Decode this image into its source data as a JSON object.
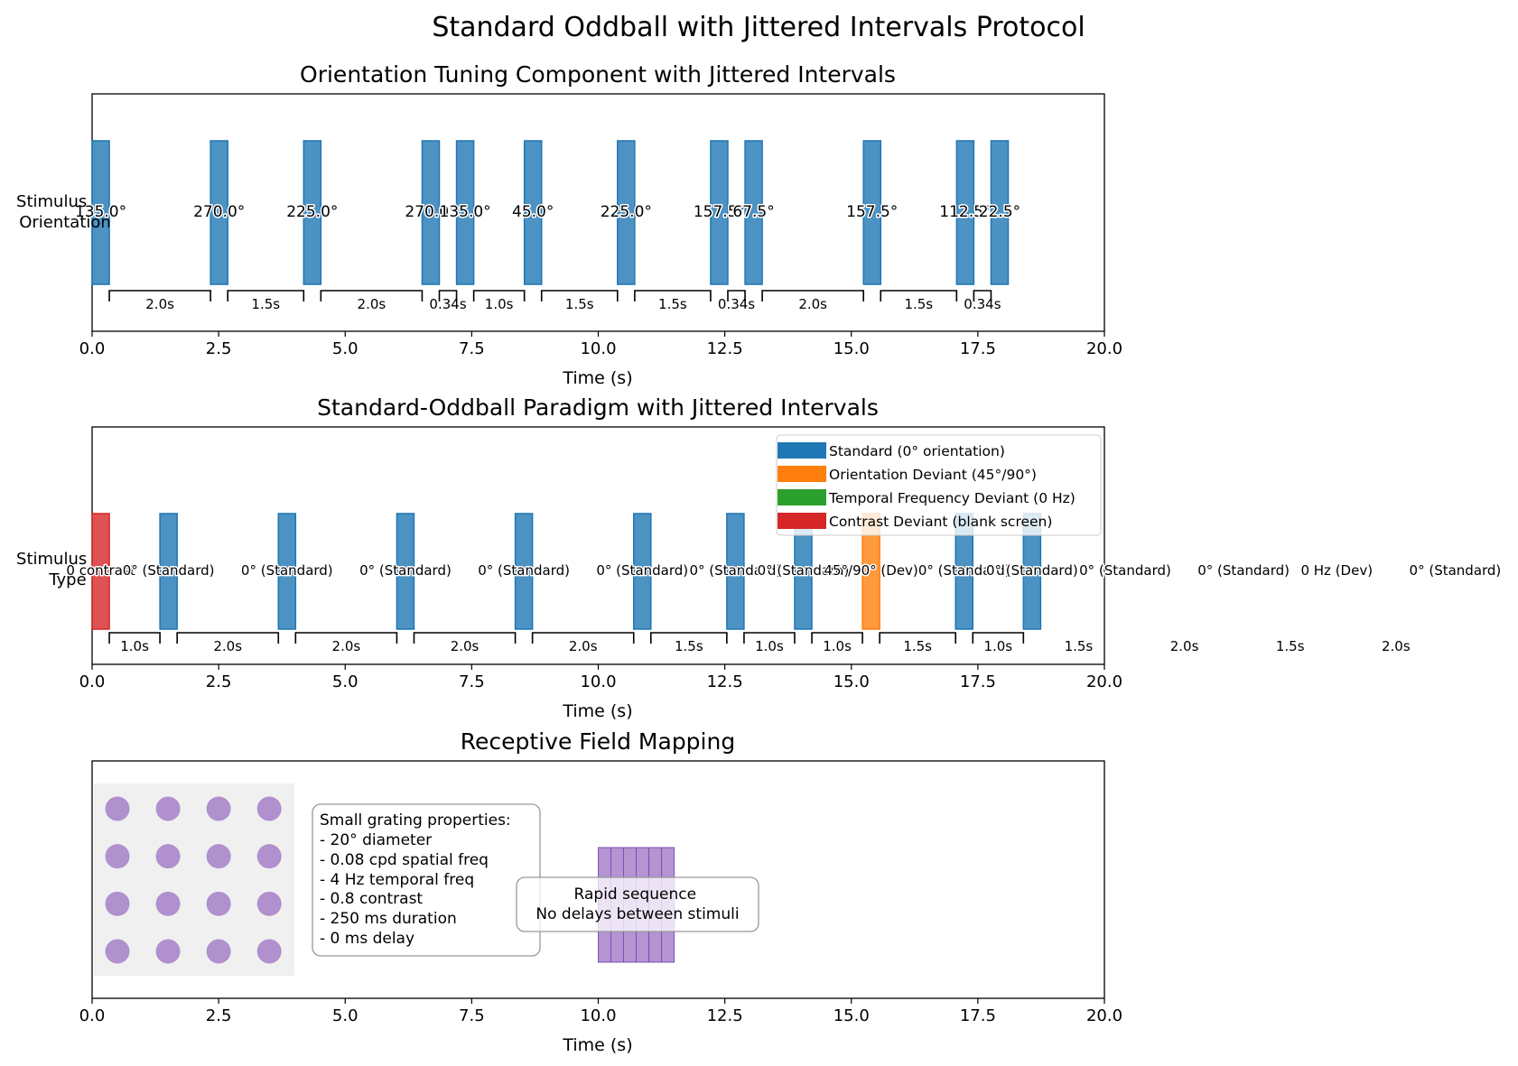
{
  "figure": {
    "title": "Standard Oddball with Jittered Intervals Protocol"
  },
  "chart_data": [
    {
      "type": "bar",
      "title": "Orientation Tuning Component with Jittered Intervals",
      "xlabel": "Time (s)",
      "ylabel": "Stimulus\nOrientation",
      "xlim": [
        0,
        20
      ],
      "xticks": [
        "0.0",
        "2.5",
        "5.0",
        "7.5",
        "10.0",
        "12.5",
        "15.0",
        "17.5",
        "20.0"
      ],
      "bar_duration": 0.34,
      "stimuli": [
        {
          "t": 0.0,
          "label": "135.0°"
        },
        {
          "t": 2.34,
          "label": "270.0°"
        },
        {
          "t": 4.18,
          "label": "225.0°"
        },
        {
          "t": 6.52,
          "label": "270.0°"
        },
        {
          "t": 7.2,
          "label": "135.0°"
        },
        {
          "t": 8.54,
          "label": "45.0°"
        },
        {
          "t": 10.38,
          "label": "225.0°"
        },
        {
          "t": 12.22,
          "label": "157.5°"
        },
        {
          "t": 12.9,
          "label": "67.5°"
        },
        {
          "t": 15.24,
          "label": "157.5°"
        },
        {
          "t": 17.08,
          "label": "112.5°"
        },
        {
          "t": 17.76,
          "label": "22.5°"
        }
      ],
      "intervals": [
        {
          "label": "2.0s"
        },
        {
          "label": "1.5s"
        },
        {
          "label": "2.0s"
        },
        {
          "label": "0.34s"
        },
        {
          "label": "1.0s"
        },
        {
          "label": "1.5s"
        },
        {
          "label": "1.5s"
        },
        {
          "label": "0.34s"
        },
        {
          "label": "2.0s"
        },
        {
          "label": "1.5s"
        },
        {
          "label": "0.34s"
        }
      ],
      "series_color": "#1f77b4"
    },
    {
      "type": "bar",
      "title": "Standard-Oddball Paradigm with Jittered Intervals",
      "xlabel": "Time (s)",
      "ylabel": "Stimulus\nType",
      "xlim": [
        0,
        20
      ],
      "xticks": [
        "0.0",
        "2.5",
        "5.0",
        "7.5",
        "10.0",
        "12.5",
        "15.0",
        "17.5",
        "20.0"
      ],
      "bar_duration": 0.34,
      "legend": {
        "position": "upper right",
        "entries": [
          {
            "label": "Standard (0° orientation)",
            "color": "#1f77b4"
          },
          {
            "label": "Orientation Deviant (45°/90°)",
            "color": "#ff7f0e"
          },
          {
            "label": "Temporal Frequency Deviant (0 Hz)",
            "color": "#2ca02c"
          },
          {
            "label": "Contrast Deviant (blank screen)",
            "color": "#d62728"
          }
        ]
      },
      "stimuli": [
        {
          "t": 0.0,
          "label": "0 contrast",
          "kind": "contrast",
          "color": "#d62728",
          "visible_bar": true
        },
        {
          "t": 1.34,
          "label": "0° (Standard)",
          "kind": "standard",
          "color": "#1f77b4",
          "visible_bar": true
        },
        {
          "t": 3.68,
          "label": "0° (Standard)",
          "kind": "standard",
          "color": "#1f77b4",
          "visible_bar": true
        },
        {
          "t": 6.02,
          "label": "0° (Standard)",
          "kind": "standard",
          "color": "#1f77b4",
          "visible_bar": true
        },
        {
          "t": 8.36,
          "label": "0° (Standard)",
          "kind": "standard",
          "color": "#1f77b4",
          "visible_bar": true
        },
        {
          "t": 10.7,
          "label": "0° (Standard)",
          "kind": "standard",
          "color": "#1f77b4",
          "visible_bar": true
        },
        {
          "t": 12.54,
          "label": "0° (Standard)",
          "kind": "standard",
          "color": "#1f77b4",
          "visible_bar": true
        },
        {
          "t": 13.88,
          "label": "0° (Standard)",
          "kind": "standard",
          "color": "#1f77b4",
          "visible_bar": true
        },
        {
          "t": 15.22,
          "label": "45°/90° (Dev)",
          "kind": "orientation",
          "color": "#ff7f0e",
          "visible_bar": true
        },
        {
          "t": 17.06,
          "label": "0° (Standard)",
          "kind": "standard",
          "color": "#1f77b4",
          "visible_bar": true
        },
        {
          "t": 18.4,
          "label": "0° (Standard)",
          "kind": "standard",
          "color": "#1f77b4",
          "visible_bar": true
        },
        {
          "t": 20.24,
          "label": "0° (Standard)",
          "kind": "standard",
          "color": "#1f77b4",
          "visible_bar": false
        },
        {
          "t": 22.58,
          "label": "0° (Standard)",
          "kind": "standard",
          "color": "#1f77b4",
          "visible_bar": false
        },
        {
          "t": 24.42,
          "label": "0 Hz (Dev)",
          "kind": "temporal",
          "color": "#2ca02c",
          "visible_bar": false
        },
        {
          "t": 26.76,
          "label": "0° (Standard)",
          "kind": "standard",
          "color": "#1f77b4",
          "visible_bar": false
        }
      ],
      "intervals": [
        {
          "label": "1.0s"
        },
        {
          "label": "2.0s"
        },
        {
          "label": "2.0s"
        },
        {
          "label": "2.0s"
        },
        {
          "label": "2.0s"
        },
        {
          "label": "1.5s"
        },
        {
          "label": "1.0s"
        },
        {
          "label": "1.0s"
        },
        {
          "label": "1.5s"
        },
        {
          "label": "1.0s"
        },
        {
          "label": "1.5s"
        },
        {
          "label": "2.0s"
        },
        {
          "label": "1.5s"
        },
        {
          "label": "2.0s"
        }
      ]
    },
    {
      "type": "scatter",
      "title": "Receptive Field Mapping",
      "xlabel": "Time (s)",
      "xlim": [
        0,
        20
      ],
      "xticks": [
        "0.0",
        "2.5",
        "5.0",
        "7.5",
        "10.0",
        "12.5",
        "15.0",
        "17.5",
        "20.0"
      ],
      "grid_points": {
        "x": [
          0.5,
          1.5,
          2.5,
          3.5
        ],
        "y_rows": 4,
        "color": "#9467bd"
      },
      "grid_panel_x_range": [
        0,
        4
      ],
      "rapid_sequence": {
        "start": 10.0,
        "end": 11.5,
        "count": 6,
        "color": "#9467bd"
      },
      "annotations": [
        "Small grating properties:",
        "- 20° diameter",
        "- 0.08 cpd spatial freq",
        "- 4 Hz temporal freq",
        "- 0.8 contrast",
        "- 250 ms duration",
        "- 0 ms delay"
      ],
      "rapid_note": [
        "Rapid sequence",
        "No delays between stimuli"
      ]
    }
  ]
}
